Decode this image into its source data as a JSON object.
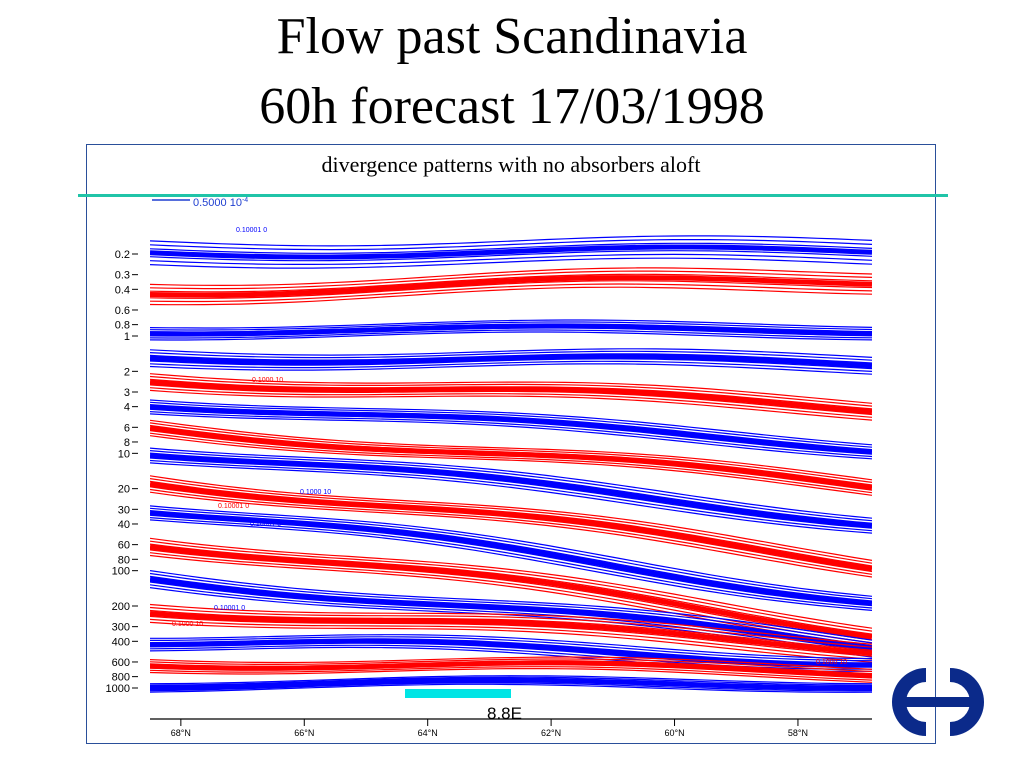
{
  "slide": {
    "title_line1": "Flow past Scandinavia",
    "title_line2": "60h forecast 17/03/1998",
    "subtitle": "divergence patterns with no absorbers aloft"
  },
  "chart_data": {
    "type": "contour",
    "title": "",
    "legend_key": "0.5000 10",
    "legend_exp": "-4",
    "panel_label": "8.8E",
    "yscale": "log",
    "ylim": [
      1000,
      0.2
    ],
    "y_ticks": [
      "0.2",
      "0.3",
      "0.4",
      "0.6",
      "0.8",
      "1",
      "2",
      "3",
      "4",
      "6",
      "8",
      "10",
      "20",
      "30",
      "40",
      "60",
      "80",
      "100",
      "200",
      "300",
      "400",
      "600",
      "800",
      "1000"
    ],
    "x_ticks": [
      "68°N",
      "66°N",
      "64°N",
      "62°N",
      "60°N",
      "58°N"
    ],
    "x_tick_values": [
      68,
      66,
      64,
      62,
      60,
      58
    ],
    "xlim": [
      68.5,
      56.8
    ],
    "contour_labels": [
      "0.10001 0",
      "0.10001 0",
      "0.10001 0",
      "0.1000 10",
      "0.10001 0",
      "0.1000 10",
      "0.1000 10",
      "0.1000 10"
    ],
    "colors": {
      "positive": "#ff0000",
      "negative": "#0000ff",
      "orography": "#00e5e5",
      "rule": "#20c4a8",
      "logo": "#0b2a8a"
    }
  }
}
